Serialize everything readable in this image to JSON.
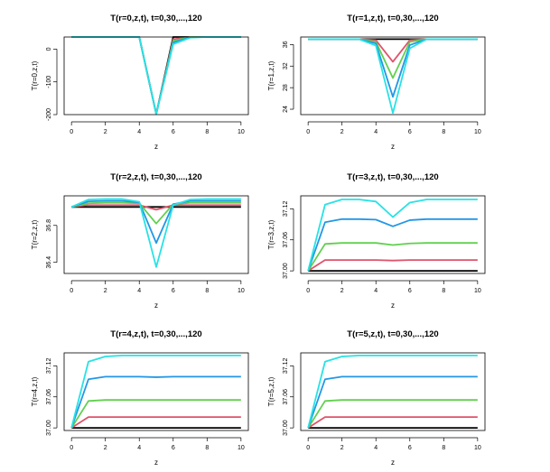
{
  "chart_data": [
    {
      "type": "line",
      "title": "T(r=0,z,t), t=0,30,...,120",
      "xlabel": "z",
      "ylabel": "T(r=0,z,t)",
      "xlim": [
        0,
        10
      ],
      "ylim": [
        -200,
        37
      ],
      "xticks": [
        "0",
        "2",
        "4",
        "6",
        "8",
        "10"
      ],
      "yticks": [
        "-200",
        "-100",
        "0"
      ],
      "x": [
        0,
        1,
        2,
        3,
        4,
        5,
        6,
        7,
        8,
        9,
        10
      ],
      "series": [
        {
          "color": "#000000",
          "values": [
            37,
            37,
            37,
            37,
            37,
            -198,
            37,
            37,
            37,
            37,
            37
          ]
        },
        {
          "color": "#DF536B",
          "values": [
            37,
            37,
            37,
            37,
            37,
            -198,
            30,
            37,
            37,
            37,
            37
          ]
        },
        {
          "color": "#61D04F",
          "values": [
            37,
            37,
            37,
            37,
            37,
            -198,
            25,
            37,
            37,
            37,
            37
          ]
        },
        {
          "color": "#2297E6",
          "values": [
            37,
            37,
            37,
            37,
            37,
            -198,
            20,
            36,
            37,
            37,
            37
          ]
        },
        {
          "color": "#28E2E5",
          "values": [
            37,
            37,
            37,
            37,
            37,
            -198,
            15,
            35,
            37,
            37,
            37
          ]
        }
      ]
    },
    {
      "type": "line",
      "title": "T(r=1,z,t), t=0,30,...,120",
      "xlabel": "z",
      "ylabel": "T(r=1,z,t)",
      "xlim": [
        0,
        10
      ],
      "ylim": [
        23,
        37.4
      ],
      "xticks": [
        "0",
        "2",
        "4",
        "6",
        "8",
        "10"
      ],
      "yticks": [
        "24",
        "28",
        "32",
        "36"
      ],
      "x": [
        0,
        1,
        2,
        3,
        4,
        5,
        6,
        7,
        8,
        9,
        10
      ],
      "series": [
        {
          "color": "#000000",
          "values": [
            37,
            37,
            37,
            37,
            37,
            37,
            37,
            37,
            37,
            37,
            37
          ]
        },
        {
          "color": "#DF536B",
          "values": [
            37,
            37,
            37,
            37,
            36.8,
            32.8,
            36.8,
            37,
            37,
            37,
            37
          ]
        },
        {
          "color": "#61D04F",
          "values": [
            37,
            37,
            37,
            37,
            36.5,
            29.8,
            36.5,
            37,
            37,
            37,
            37
          ]
        },
        {
          "color": "#2297E6",
          "values": [
            37,
            37,
            37,
            37,
            36.2,
            26.3,
            35.9,
            37,
            37,
            37,
            37
          ]
        },
        {
          "color": "#28E2E5",
          "values": [
            37,
            37,
            37,
            37,
            35.8,
            23.3,
            35.3,
            37,
            37,
            37,
            37
          ]
        }
      ]
    },
    {
      "type": "line",
      "title": "T(r=2,z,t), t=0,30,...,120",
      "xlabel": "z",
      "ylabel": "T(r=2,z,t)",
      "xlim": [
        0,
        10
      ],
      "ylim": [
        36.28,
        37.12
      ],
      "xticks": [
        "0",
        "2",
        "4",
        "6",
        "8",
        "10"
      ],
      "yticks": [
        "36.4",
        "36.8"
      ],
      "x": [
        0,
        1,
        2,
        3,
        4,
        5,
        6,
        7,
        8,
        9,
        10
      ],
      "series": [
        {
          "color": "#000000",
          "values": [
            37,
            37,
            37,
            37,
            37,
            37,
            37,
            37,
            37,
            37,
            37
          ]
        },
        {
          "color": "#DF536B",
          "values": [
            37,
            37.02,
            37.02,
            37.02,
            37.02,
            36.97,
            37.02,
            37.02,
            37.02,
            37.02,
            37.02
          ]
        },
        {
          "color": "#61D04F",
          "values": [
            37,
            37.04,
            37.045,
            37.045,
            37.04,
            36.82,
            37.03,
            37.045,
            37.045,
            37.045,
            37.045
          ]
        },
        {
          "color": "#2297E6",
          "values": [
            37,
            37.06,
            37.065,
            37.065,
            37.05,
            36.61,
            37.03,
            37.065,
            37.065,
            37.065,
            37.065
          ]
        },
        {
          "color": "#28E2E5",
          "values": [
            37,
            37.08,
            37.085,
            37.085,
            37.055,
            36.35,
            37.02,
            37.08,
            37.085,
            37.085,
            37.085
          ]
        }
      ]
    },
    {
      "type": "line",
      "title": "T(r=3,z,t), t=0,30,...,120",
      "xlabel": "z",
      "ylabel": "T(r=3,z,t)",
      "xlim": [
        0,
        10
      ],
      "ylim": [
        36.995,
        37.145
      ],
      "xticks": [
        "0",
        "2",
        "4",
        "6",
        "8",
        "10"
      ],
      "yticks": [
        "37.00",
        "37.06",
        "37.12"
      ],
      "x": [
        0,
        1,
        2,
        3,
        4,
        5,
        6,
        7,
        8,
        9,
        10
      ],
      "series": [
        {
          "color": "#000000",
          "values": [
            37,
            37,
            37,
            37,
            37,
            37,
            37,
            37,
            37,
            37,
            37
          ]
        },
        {
          "color": "#DF536B",
          "values": [
            37,
            37.021,
            37.021,
            37.021,
            37.021,
            37.02,
            37.021,
            37.021,
            37.021,
            37.021,
            37.021
          ]
        },
        {
          "color": "#61D04F",
          "values": [
            37,
            37.052,
            37.054,
            37.054,
            37.054,
            37.05,
            37.053,
            37.054,
            37.054,
            37.054,
            37.054
          ]
        },
        {
          "color": "#2297E6",
          "values": [
            37,
            37.094,
            37.1,
            37.1,
            37.099,
            37.086,
            37.098,
            37.1,
            37.1,
            37.1,
            37.1
          ]
        },
        {
          "color": "#28E2E5",
          "values": [
            37,
            37.128,
            37.138,
            37.138,
            37.134,
            37.104,
            37.132,
            37.138,
            37.138,
            37.138,
            37.138
          ]
        }
      ]
    },
    {
      "type": "line",
      "title": "T(r=4,z,t), t=0,30,...,120",
      "xlabel": "z",
      "ylabel": "T(r=4,z,t)",
      "xlim": [
        0,
        10
      ],
      "ylim": [
        36.995,
        37.145
      ],
      "xticks": [
        "0",
        "2",
        "4",
        "6",
        "8",
        "10"
      ],
      "yticks": [
        "37.00",
        "37.06",
        "37.12"
      ],
      "x": [
        0,
        1,
        2,
        3,
        4,
        5,
        6,
        7,
        8,
        9,
        10
      ],
      "series": [
        {
          "color": "#000000",
          "values": [
            37,
            37,
            37,
            37,
            37,
            37,
            37,
            37,
            37,
            37,
            37
          ]
        },
        {
          "color": "#DF536B",
          "values": [
            37,
            37.021,
            37.021,
            37.021,
            37.021,
            37.021,
            37.021,
            37.021,
            37.021,
            37.021,
            37.021
          ]
        },
        {
          "color": "#61D04F",
          "values": [
            37,
            37.052,
            37.054,
            37.054,
            37.054,
            37.054,
            37.054,
            37.054,
            37.054,
            37.054,
            37.054
          ]
        },
        {
          "color": "#2297E6",
          "values": [
            37,
            37.094,
            37.099,
            37.099,
            37.099,
            37.098,
            37.099,
            37.099,
            37.099,
            37.099,
            37.099
          ]
        },
        {
          "color": "#28E2E5",
          "values": [
            37,
            37.128,
            37.138,
            37.14,
            37.14,
            37.14,
            37.14,
            37.14,
            37.14,
            37.14,
            37.14
          ]
        }
      ]
    },
    {
      "type": "line",
      "title": "T(r=5,z,t), t=0,30,...,120",
      "xlabel": "z",
      "ylabel": "T(r=5,z,t)",
      "xlim": [
        0,
        10
      ],
      "ylim": [
        36.995,
        37.145
      ],
      "xticks": [
        "0",
        "2",
        "4",
        "6",
        "8",
        "10"
      ],
      "yticks": [
        "37.00",
        "37.06",
        "37.12"
      ],
      "x": [
        0,
        1,
        2,
        3,
        4,
        5,
        6,
        7,
        8,
        9,
        10
      ],
      "series": [
        {
          "color": "#000000",
          "values": [
            37,
            37,
            37,
            37,
            37,
            37,
            37,
            37,
            37,
            37,
            37
          ]
        },
        {
          "color": "#DF536B",
          "values": [
            37,
            37.021,
            37.021,
            37.021,
            37.021,
            37.021,
            37.021,
            37.021,
            37.021,
            37.021,
            37.021
          ]
        },
        {
          "color": "#61D04F",
          "values": [
            37,
            37.052,
            37.054,
            37.054,
            37.054,
            37.054,
            37.054,
            37.054,
            37.054,
            37.054,
            37.054
          ]
        },
        {
          "color": "#2297E6",
          "values": [
            37,
            37.094,
            37.099,
            37.099,
            37.099,
            37.099,
            37.099,
            37.099,
            37.099,
            37.099,
            37.099
          ]
        },
        {
          "color": "#28E2E5",
          "values": [
            37,
            37.128,
            37.138,
            37.14,
            37.14,
            37.14,
            37.14,
            37.14,
            37.14,
            37.14,
            37.14
          ]
        }
      ]
    }
  ]
}
